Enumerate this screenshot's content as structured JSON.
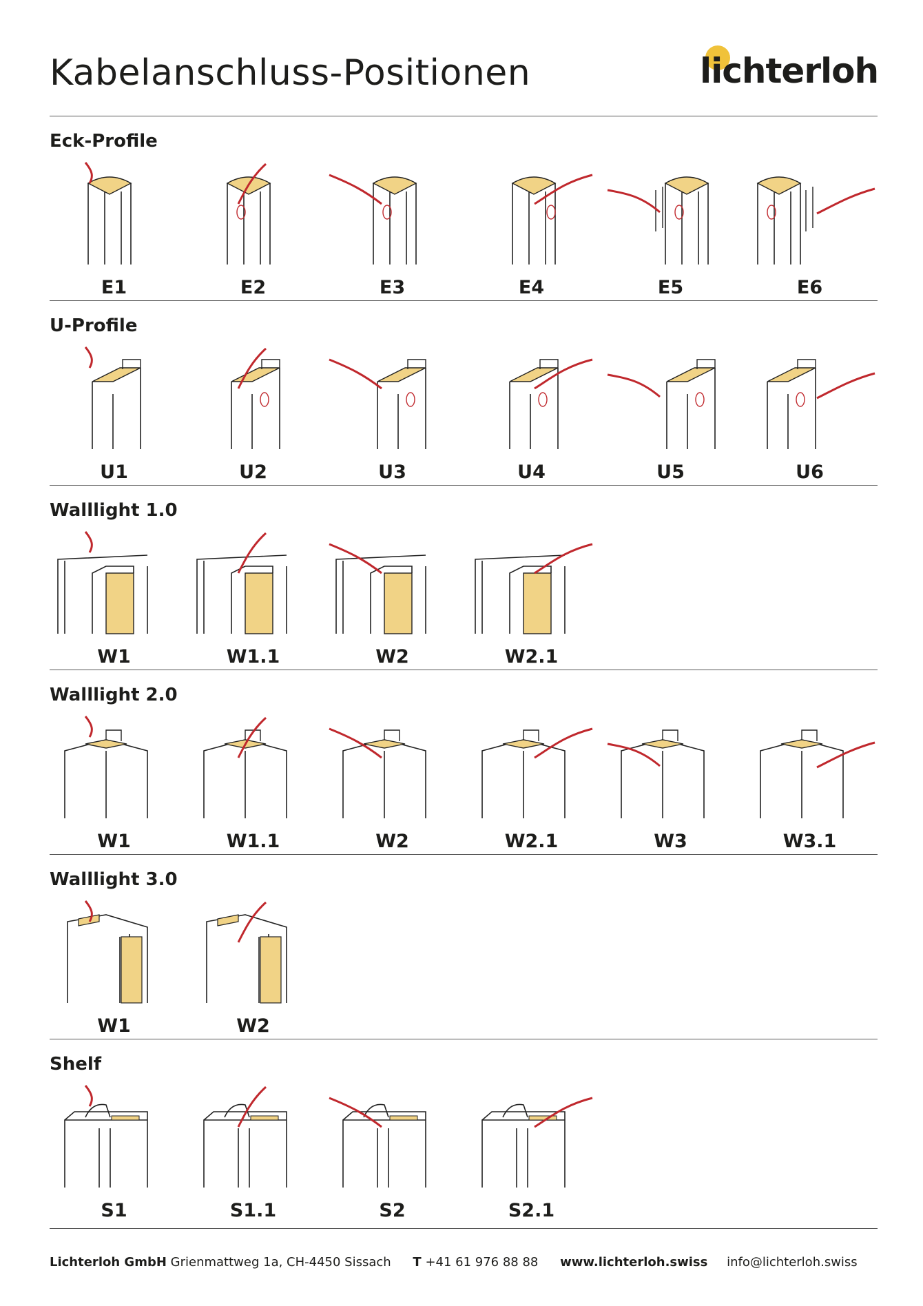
{
  "header": {
    "title": "Kabelanschluss-Positionen",
    "logo_text": "lichterloh"
  },
  "colors": {
    "accent": "#f0c23a",
    "cable": "#c0282d",
    "profile_fill": "#f1d386",
    "line": "#222222"
  },
  "sections": [
    {
      "title": "Eck-Profile",
      "type": "eck",
      "items": [
        "E1",
        "E2",
        "E3",
        "E4",
        "E5",
        "E6"
      ]
    },
    {
      "title": "U-Profile",
      "type": "u",
      "items": [
        "U1",
        "U2",
        "U3",
        "U4",
        "U5",
        "U6"
      ]
    },
    {
      "title": "Walllight 1.0",
      "type": "w10",
      "items": [
        "W1",
        "W1.1",
        "W2",
        "W2.1"
      ]
    },
    {
      "title": "Walllight 2.0",
      "type": "w20",
      "items": [
        "W1",
        "W1.1",
        "W2",
        "W2.1",
        "W3",
        "W3.1"
      ]
    },
    {
      "title": "Walllight 3.0",
      "type": "w30",
      "items": [
        "W1",
        "W2"
      ]
    },
    {
      "title": "Shelf",
      "type": "shelf",
      "items": [
        "S1",
        "S1.1",
        "S2",
        "S2.1"
      ]
    }
  ],
  "footer": {
    "company": "Lichterloh GmbH",
    "address": "Grienmattweg 1a, CH-4450 Sissach",
    "phone_label": "T",
    "phone": "+41 61 976 88 88",
    "website": "www.lichterloh.swiss",
    "email": "info@lichterloh.swiss"
  }
}
